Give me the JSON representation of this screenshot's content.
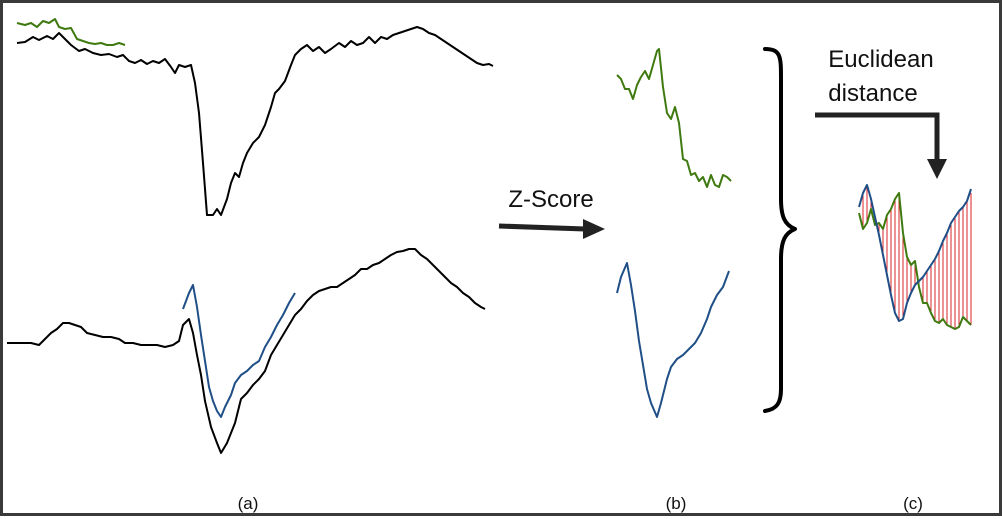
{
  "labels": {
    "zscore": "Z-Score",
    "euclid_line1": "Euclidean",
    "euclid_line2": "distance",
    "panel_a": "(a)",
    "panel_b": "(b)",
    "panel_c": "(c)"
  },
  "colors": {
    "series_black": "#000000",
    "query_green": "#3f7a10",
    "query_blue": "#1f4f86",
    "distance_hatch": "#d9252a",
    "arrow": "#222222"
  }
}
